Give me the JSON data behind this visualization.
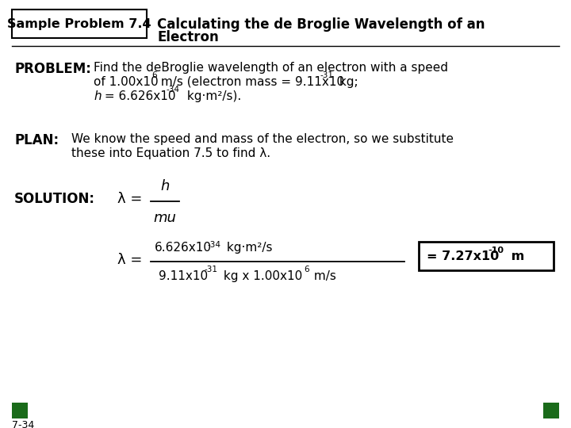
{
  "title_box_text": "Sample Problem 7.4",
  "title_heading_line1": "Calculating the de Broglie Wavelength of an",
  "title_heading_line2": "Electron",
  "problem_label": "PROBLEM:",
  "plan_label": "PLAN:",
  "solution_label": "SOLUTION:",
  "slide_num": "7-34",
  "dark_green": "#1a6b1a"
}
